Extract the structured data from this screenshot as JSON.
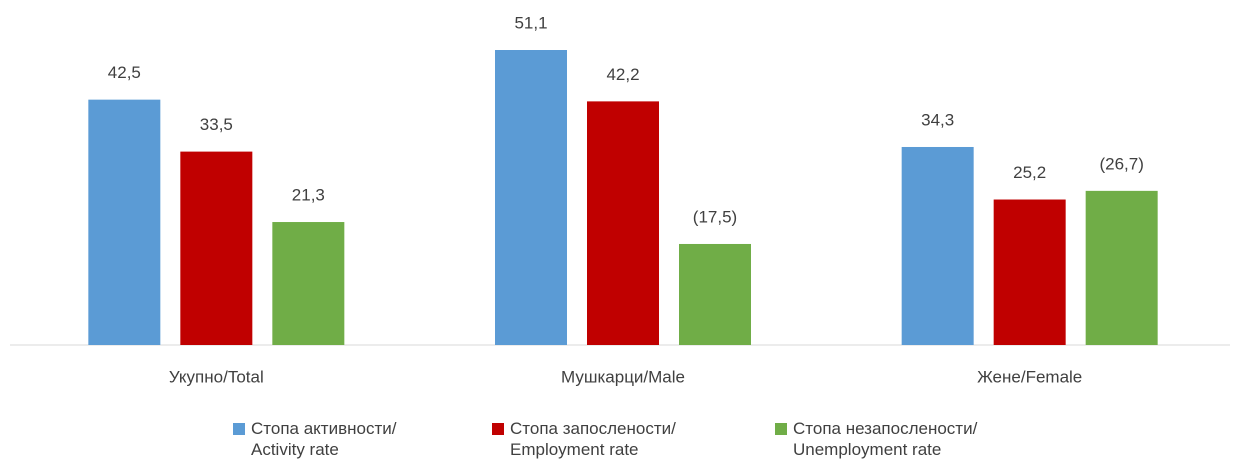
{
  "chart_data": {
    "type": "bar",
    "categories": [
      "Укупно/Total",
      "Мушкарци/Male",
      "Жене/Female"
    ],
    "series": [
      {
        "name": "Стопа активности/ Activity rate",
        "color": "#5b9bd5",
        "values": [
          42.5,
          51.1,
          34.3
        ],
        "value_labels": [
          "42,5",
          "51,1",
          "34,3"
        ]
      },
      {
        "name": "Стопа запослености/ Employment rate",
        "color": "#c00000",
        "values": [
          33.5,
          42.2,
          25.2
        ],
        "value_labels": [
          "33,5",
          "42,2",
          "25,2"
        ]
      },
      {
        "name": "Стопа незапослености/ Unemployment rate",
        "color": "#70ad47",
        "values": [
          21.3,
          17.5,
          26.7
        ],
        "value_labels": [
          "21,3",
          "(17,5)",
          "(26,7)"
        ]
      }
    ],
    "legend": "bottom"
  }
}
